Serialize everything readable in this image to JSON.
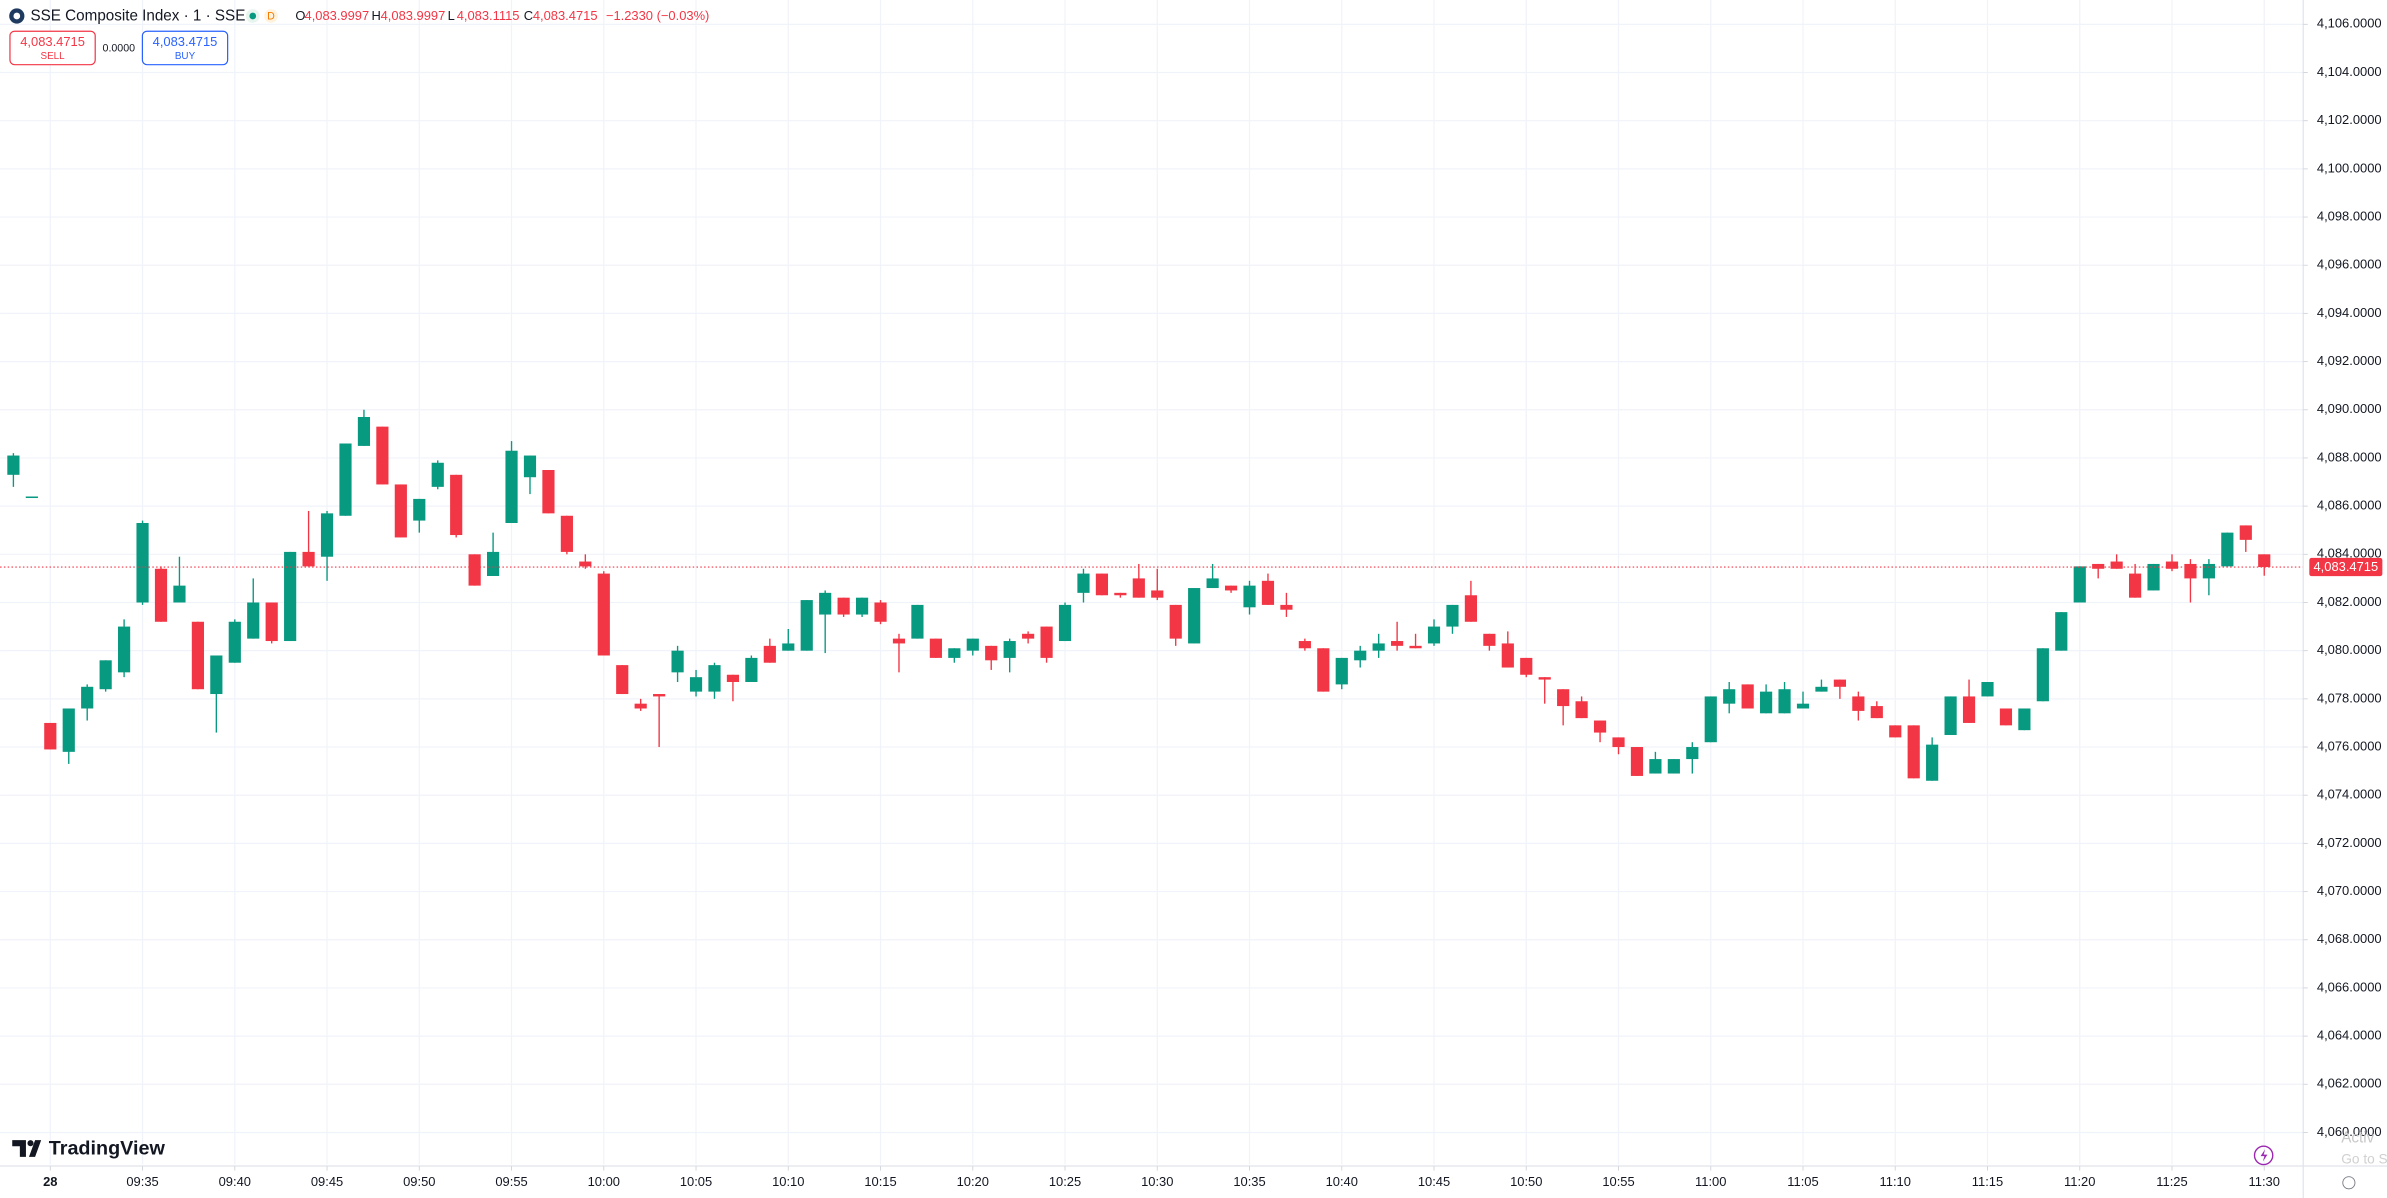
{
  "header": {
    "title": "SSE Composite Index · 1 · SSE",
    "badge": "D",
    "ohlc": [
      {
        "key": "O",
        "value": "4,083.9997"
      },
      {
        "key": "H",
        "value": "4,083.9997"
      },
      {
        "key": "L",
        "value": "4,083.1115"
      },
      {
        "key": "C",
        "value": "4,083.4715"
      }
    ],
    "change": "−1.2330 (−0.03%)",
    "sell": {
      "price": "4,083.4715",
      "label": "SELL"
    },
    "spread": "0.0000",
    "buy": {
      "price": "4,083.4715",
      "label": "BUY"
    }
  },
  "logo": "TradingView",
  "watermark": [
    "Activ",
    "Go to S"
  ],
  "chart_data": {
    "type": "candlestick",
    "up_color": "#089981",
    "down_color": "#f23645",
    "grid": true,
    "x": [
      "09:28",
      "09:29",
      "09:30",
      "09:31",
      "09:32",
      "09:33",
      "09:34",
      "09:35",
      "09:36",
      "09:37",
      "09:38",
      "09:39",
      "09:40",
      "09:41",
      "09:42",
      "09:43",
      "09:44",
      "09:45",
      "09:46",
      "09:47",
      "09:48",
      "09:49",
      "09:50",
      "09:51",
      "09:52",
      "09:53",
      "09:54",
      "09:55",
      "09:56",
      "09:57",
      "09:58",
      "09:59",
      "10:00",
      "10:01",
      "10:02",
      "10:03",
      "10:04",
      "10:05",
      "10:06",
      "10:07",
      "10:08",
      "10:09",
      "10:10",
      "10:11",
      "10:12",
      "10:13",
      "10:14",
      "10:15",
      "10:16",
      "10:17",
      "10:18",
      "10:19",
      "10:20",
      "10:21",
      "10:22",
      "10:23",
      "10:24",
      "10:25",
      "10:26",
      "10:27",
      "10:28",
      "10:29",
      "10:30",
      "10:31",
      "10:32",
      "10:33",
      "10:34",
      "10:35",
      "10:36",
      "10:37",
      "10:38",
      "10:39",
      "10:40",
      "10:41",
      "10:42",
      "10:43",
      "10:44",
      "10:45",
      "10:46",
      "10:47",
      "10:48",
      "10:49",
      "10:50",
      "10:51",
      "10:52",
      "10:53",
      "10:54",
      "10:55",
      "10:56",
      "10:57",
      "10:58",
      "10:59",
      "11:00",
      "11:01",
      "11:02",
      "11:03",
      "11:04",
      "11:05",
      "11:06",
      "11:07",
      "11:08",
      "11:09",
      "11:10",
      "11:11",
      "11:12",
      "11:13",
      "11:14",
      "11:15",
      "11:16",
      "11:17",
      "11:18",
      "11:19",
      "11:20",
      "11:21",
      "11:22",
      "11:23",
      "11:24",
      "11:25",
      "11:26",
      "11:27",
      "11:28",
      "11:29",
      "11:30"
    ],
    "open": [
      4087.3,
      4086.4,
      4077.0,
      4075.8,
      4077.6,
      4078.4,
      4079.1,
      4082.0,
      4083.4,
      4082.0,
      4081.2,
      4078.2,
      4079.5,
      4080.5,
      4082.0,
      4080.4,
      4084.1,
      4083.9,
      4085.6,
      4088.5,
      4089.3,
      4086.9,
      4085.4,
      4086.8,
      4087.3,
      4084.0,
      4083.1,
      4085.3,
      4087.2,
      4087.5,
      4085.6,
      4083.7,
      4083.2,
      4079.4,
      4077.8,
      4078.2,
      4079.1,
      4078.3,
      4078.3,
      4079.0,
      4078.7,
      4080.2,
      4080.0,
      4080.0,
      4081.5,
      4082.2,
      4081.5,
      4082.0,
      4080.5,
      4080.5,
      4080.5,
      4079.7,
      4080.0,
      4080.2,
      4079.7,
      4080.7,
      4081.0,
      4080.4,
      4082.4,
      4083.2,
      4082.4,
      4083.0,
      4082.5,
      4081.9,
      4080.3,
      4082.6,
      4082.7,
      4081.8,
      4082.9,
      4081.9,
      4080.4,
      4080.1,
      4078.6,
      4079.6,
      4080.0,
      4080.4,
      4080.2,
      4080.3,
      4081.0,
      4082.3,
      4080.7,
      4080.3,
      4079.7,
      4078.9,
      4078.4,
      4077.9,
      4077.1,
      4076.4,
      4076.0,
      4074.9,
      4074.9,
      4075.5,
      4076.2,
      4077.8,
      4078.6,
      4077.4,
      4077.4,
      4077.6,
      4078.3,
      4078.8,
      4078.1,
      4077.7,
      4076.9,
      4076.9,
      4074.6,
      4076.5,
      4078.1,
      4078.1,
      4077.6,
      4076.7,
      4077.9,
      4080.0,
      4082.0,
      4083.6,
      4083.7,
      4083.2,
      4082.5,
      4083.7,
      4083.6,
      4083.0,
      4083.5,
      4085.2,
      4083.9997
    ],
    "high": [
      4088.2,
      4086.4,
      4077.0,
      4077.6,
      4078.6,
      4079.6,
      4081.3,
      4085.4,
      4083.5,
      4083.9,
      4081.2,
      4079.8,
      4081.3,
      4083.0,
      4082.0,
      4084.1,
      4085.8,
      4085.8,
      4088.6,
      4090.0,
      4089.3,
      4086.9,
      4086.3,
      4087.9,
      4087.3,
      4084.0,
      4084.9,
      4088.7,
      4088.1,
      4087.5,
      4085.6,
      4084.0,
      4083.3,
      4079.4,
      4078.0,
      4078.2,
      4080.2,
      4079.2,
      4079.5,
      4079.0,
      4079.8,
      4080.5,
      4080.9,
      4082.1,
      4082.5,
      4082.2,
      4082.2,
      4082.1,
      4080.7,
      4081.9,
      4080.5,
      4080.1,
      4080.5,
      4080.2,
      4080.5,
      4080.8,
      4081.0,
      4082.0,
      4083.4,
      4083.2,
      4082.4,
      4083.6,
      4083.4,
      4081.9,
      4082.6,
      4083.6,
      4082.7,
      4082.9,
      4083.2,
      4082.4,
      4080.5,
      4080.1,
      4079.7,
      4080.2,
      4080.7,
      4081.2,
      4080.7,
      4081.3,
      4081.9,
      4082.9,
      4080.7,
      4080.8,
      4079.7,
      4078.9,
      4078.4,
      4078.1,
      4077.1,
      4076.4,
      4076.0,
      4075.8,
      4075.5,
      4076.2,
      4078.1,
      4078.7,
      4078.6,
      4078.6,
      4078.7,
      4078.3,
      4078.8,
      4078.8,
      4078.3,
      4077.9,
      4076.9,
      4076.9,
      4076.4,
      4078.1,
      4078.8,
      4078.7,
      4077.6,
      4077.6,
      4080.1,
      4081.6,
      4083.5,
      4083.6,
      4084.0,
      4083.6,
      4083.6,
      4084.0,
      4083.8,
      4083.8,
      4084.9,
      4085.2,
      4083.9997
    ],
    "low": [
      4086.8,
      4086.4,
      4075.9,
      4075.3,
      4077.1,
      4078.3,
      4078.9,
      4081.9,
      4081.2,
      4082.0,
      4078.4,
      4076.6,
      4079.5,
      4080.5,
      4080.3,
      4080.4,
      4083.5,
      4082.9,
      4085.6,
      4088.5,
      4086.9,
      4084.7,
      4084.9,
      4086.7,
      4084.7,
      4082.7,
      4083.1,
      4085.3,
      4086.5,
      4085.7,
      4084.0,
      4083.4,
      4079.8,
      4078.2,
      4077.5,
      4076.0,
      4078.7,
      4078.1,
      4078.0,
      4077.9,
      4078.7,
      4079.5,
      4080.0,
      4080.0,
      4079.9,
      4081.4,
      4081.4,
      4081.1,
      4079.1,
      4080.5,
      4079.7,
      4079.5,
      4079.8,
      4079.2,
      4079.1,
      4080.3,
      4079.5,
      4080.4,
      4082.0,
      4082.3,
      4082.2,
      4082.2,
      4082.1,
      4080.2,
      4080.3,
      4082.6,
      4082.4,
      4081.5,
      4081.9,
      4081.4,
      4080.0,
      4078.3,
      4078.4,
      4079.3,
      4079.7,
      4080.0,
      4080.1,
      4080.2,
      4080.7,
      4081.2,
      4080.0,
      4079.3,
      4078.9,
      4077.8,
      4076.9,
      4077.2,
      4076.2,
      4075.7,
      4074.8,
      4074.9,
      4074.9,
      4074.9,
      4076.2,
      4077.4,
      4077.6,
      4077.4,
      4077.4,
      4077.6,
      4078.3,
      4078.0,
      4077.1,
      4077.2,
      4076.4,
      4074.7,
      4074.6,
      4076.5,
      4077.0,
      4078.1,
      4076.9,
      4076.7,
      4077.9,
      4080.0,
      4082.0,
      4083.0,
      4083.4,
      4082.2,
      4082.5,
      4083.3,
      4082.0,
      4082.3,
      4083.5,
      4084.1,
      4083.1115
    ],
    "close": [
      4088.1,
      4086.4,
      4075.9,
      4077.6,
      4078.5,
      4079.6,
      4081.0,
      4085.3,
      4081.2,
      4082.7,
      4078.4,
      4079.8,
      4081.2,
      4082.0,
      4080.4,
      4084.1,
      4083.5,
      4085.7,
      4088.6,
      4089.7,
      4086.9,
      4084.7,
      4086.3,
      4087.8,
      4084.8,
      4082.7,
      4084.1,
      4088.3,
      4088.1,
      4085.7,
      4084.1,
      4083.5,
      4079.8,
      4078.2,
      4077.6,
      4078.1,
      4080.0,
      4078.9,
      4079.4,
      4078.7,
      4079.7,
      4079.5,
      4080.3,
      4082.1,
      4082.4,
      4081.5,
      4082.2,
      4081.2,
      4080.3,
      4081.9,
      4079.7,
      4080.1,
      4080.5,
      4079.6,
      4080.4,
      4080.5,
      4079.7,
      4081.9,
      4083.2,
      4082.3,
      4082.3,
      4082.2,
      4082.2,
      4080.5,
      4082.6,
      4083.0,
      4082.5,
      4082.7,
      4081.9,
      4081.7,
      4080.1,
      4078.3,
      4079.7,
      4080.0,
      4080.3,
      4080.2,
      4080.1,
      4081.0,
      4081.9,
      4081.2,
      4080.2,
      4079.3,
      4079.0,
      4078.8,
      4077.7,
      4077.2,
      4076.6,
      4076.0,
      4074.8,
      4075.5,
      4075.5,
      4076.0,
      4078.1,
      4078.4,
      4077.6,
      4078.3,
      4078.4,
      4077.8,
      4078.5,
      4078.5,
      4077.5,
      4077.2,
      4076.4,
      4074.7,
      4076.1,
      4078.1,
      4077.0,
      4078.7,
      4076.9,
      4077.6,
      4080.1,
      4081.6,
      4083.5,
      4083.4,
      4083.4,
      4082.2,
      4083.6,
      4083.4,
      4083.0,
      4083.6,
      4084.9,
      4084.6,
      4083.4715
    ],
    "xticks": [
      {
        "value": "09:30",
        "label": "28"
      },
      "09:35",
      "09:40",
      "09:45",
      "09:50",
      "09:55",
      "10:00",
      "10:05",
      "10:10",
      "10:15",
      "10:20",
      "10:25",
      "10:30",
      "10:35",
      "10:40",
      "10:45",
      "10:50",
      "10:55",
      "11:00",
      "11:05",
      "11:10",
      "11:15",
      "11:20",
      "11:25",
      "11:30"
    ],
    "ylim": [
      4058.67,
      4107.01
    ],
    "yticks": [
      {
        "value": 4060,
        "label": "4,060.0000"
      },
      {
        "value": 4062,
        "label": "4,062.0000"
      },
      {
        "value": 4064,
        "label": "4,064.0000"
      },
      {
        "value": 4066,
        "label": "4,066.0000"
      },
      {
        "value": 4068,
        "label": "4,068.0000"
      },
      {
        "value": 4070,
        "label": "4,070.0000"
      },
      {
        "value": 4072,
        "label": "4,072.0000"
      },
      {
        "value": 4074,
        "label": "4,074.0000"
      },
      {
        "value": 4076,
        "label": "4,076.0000"
      },
      {
        "value": 4078,
        "label": "4,078.0000"
      },
      {
        "value": 4080,
        "label": "4,080.0000"
      },
      {
        "value": 4082,
        "label": "4,082.0000"
      },
      {
        "value": 4084,
        "label": "4,084.0000"
      },
      {
        "value": 4086,
        "label": "4,086.0000"
      },
      {
        "value": 4088,
        "label": "4,088.0000"
      },
      {
        "value": 4090,
        "label": "4,090.0000"
      },
      {
        "value": 4092,
        "label": "4,092.0000"
      },
      {
        "value": 4094,
        "label": "4,094.0000"
      },
      {
        "value": 4096,
        "label": "4,096.0000"
      },
      {
        "value": 4098,
        "label": "4,098.0000"
      },
      {
        "value": 4100,
        "label": "4,100.0000"
      },
      {
        "value": 4102,
        "label": "4,102.0000"
      },
      {
        "value": 4104,
        "label": "4,104.0000"
      },
      {
        "value": 4106,
        "label": "4,106.0000"
      }
    ],
    "last_price": 4083.4715,
    "last_price_label": "4,083.4715"
  }
}
